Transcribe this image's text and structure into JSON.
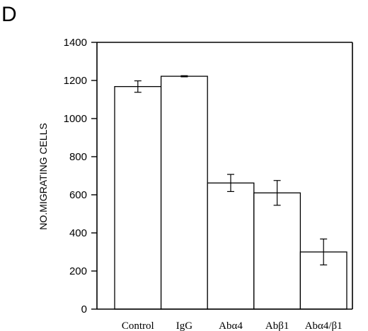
{
  "panel_label": "D",
  "chart_data": {
    "type": "bar",
    "title": "",
    "xlabel": "",
    "ylabel": "NO.MIGRATING CELLS",
    "ylim": [
      0,
      1400
    ],
    "yticks": [
      0,
      200,
      400,
      600,
      800,
      1000,
      1200,
      1400
    ],
    "categories": [
      "Control",
      "IgG",
      "Abα4",
      "Abβ1",
      "Abα4/β1"
    ],
    "values": [
      1168,
      1222,
      662,
      610,
      300
    ],
    "error": [
      30,
      3,
      45,
      65,
      68
    ],
    "grid": false
  }
}
